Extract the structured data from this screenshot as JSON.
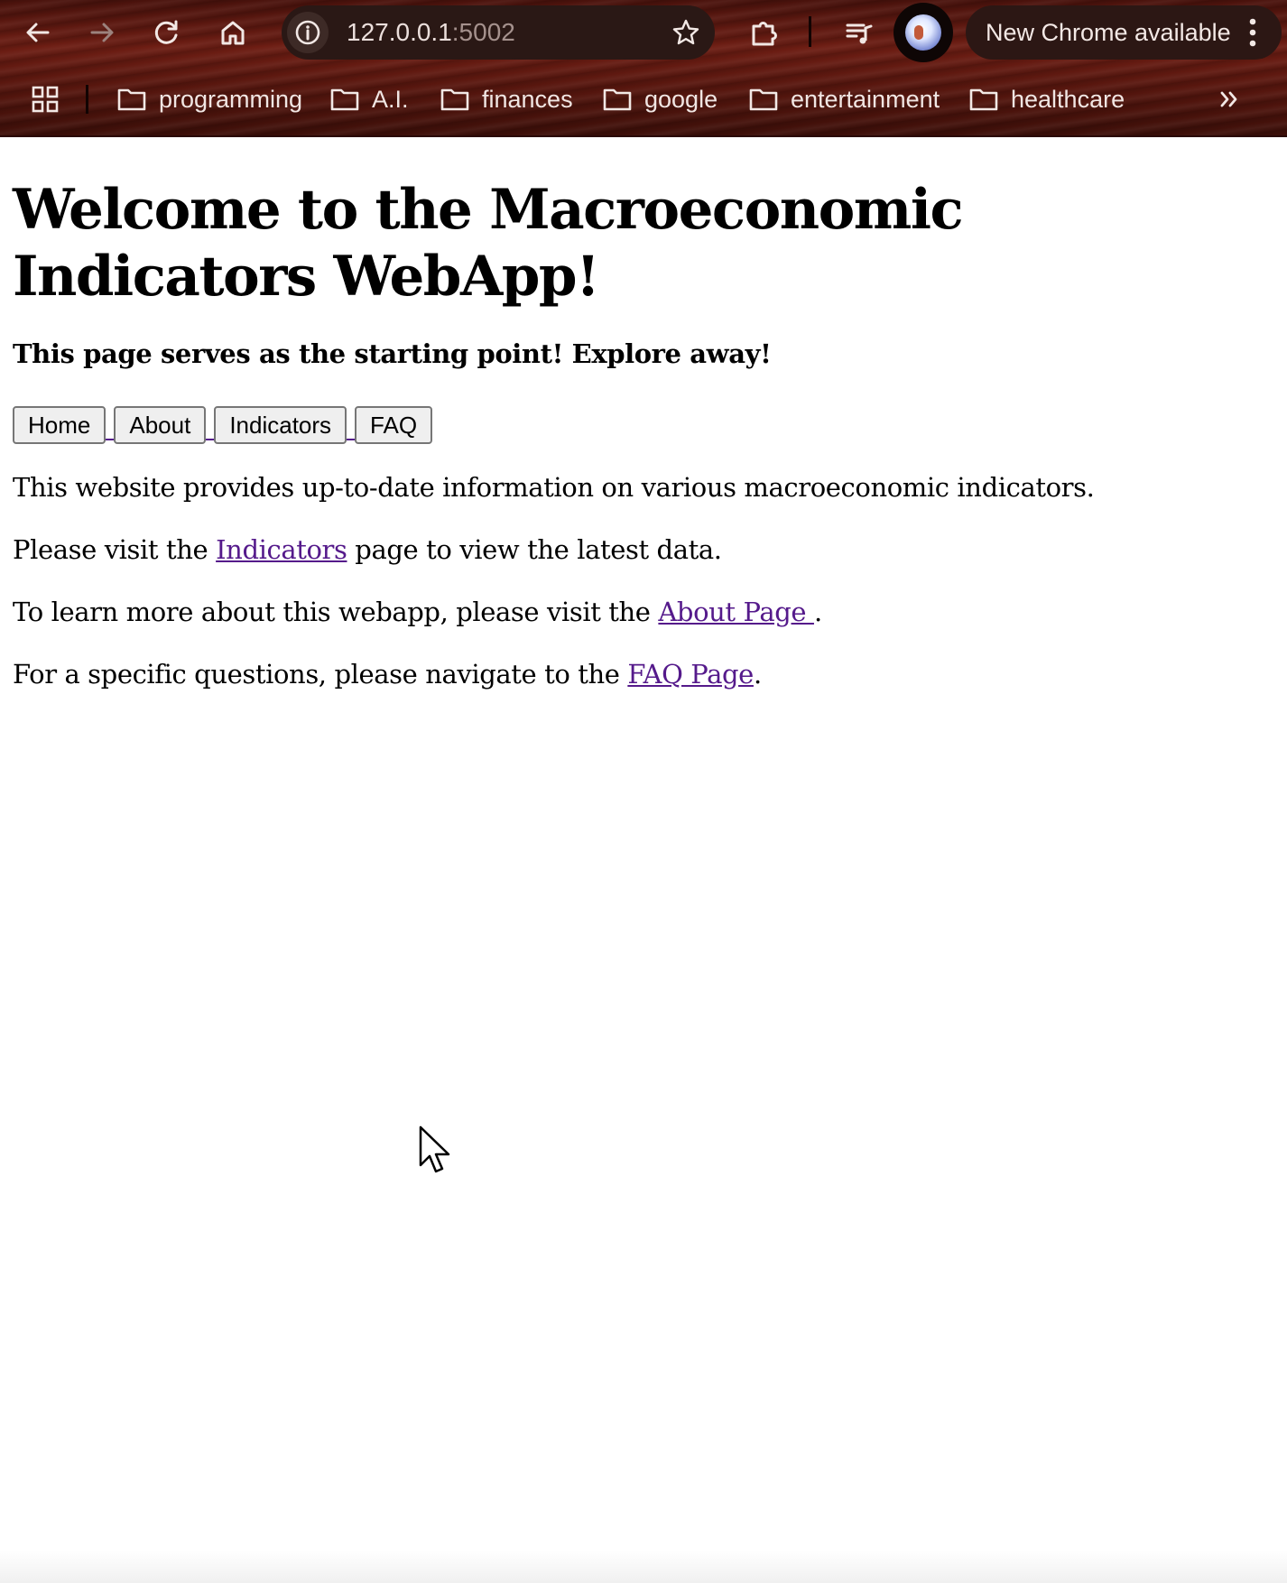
{
  "browser": {
    "url_host": "127.0.0.1",
    "url_port": ":5002",
    "update_label": "New Chrome available",
    "bookmarks": [
      {
        "label": "programming"
      },
      {
        "label": "A.I."
      },
      {
        "label": "finances"
      },
      {
        "label": "google"
      },
      {
        "label": "entertainment"
      },
      {
        "label": "healthcare"
      }
    ],
    "icons": {
      "back": "arrow-left",
      "forward": "arrow-right",
      "reload": "reload",
      "home": "home",
      "site_info": "info",
      "bookmark_star": "star",
      "extensions": "puzzle-piece",
      "reading_list": "playlist",
      "profile": "avatar",
      "menu": "three-dots",
      "apps": "grid",
      "more_bookmarks": "double-chevron-right"
    }
  },
  "page": {
    "title": "Welcome to the Macroeconomic Indicators WebApp!",
    "subtitle": "This page serves as the starting point! Explore away!",
    "nav_buttons": [
      {
        "label": "Home"
      },
      {
        "label": "About"
      },
      {
        "label": "Indicators"
      },
      {
        "label": "FAQ"
      }
    ],
    "intro": "This website provides up-to-date information on various macroeconomic indicators.",
    "indicators_before": "Please visit the ",
    "indicators_link": "Indicators",
    "indicators_after": " page to view the latest data.",
    "about_before": "To learn more about this webapp, please visit the ",
    "about_link": "About Page ",
    "about_after": ".",
    "faq_before": "For a specific questions, please navigate to the ",
    "faq_link": "FAQ Page",
    "faq_after": "."
  },
  "colors": {
    "link": "#551a8b",
    "chrome_wood": "#5a170f",
    "button_bg": "#efefef"
  }
}
